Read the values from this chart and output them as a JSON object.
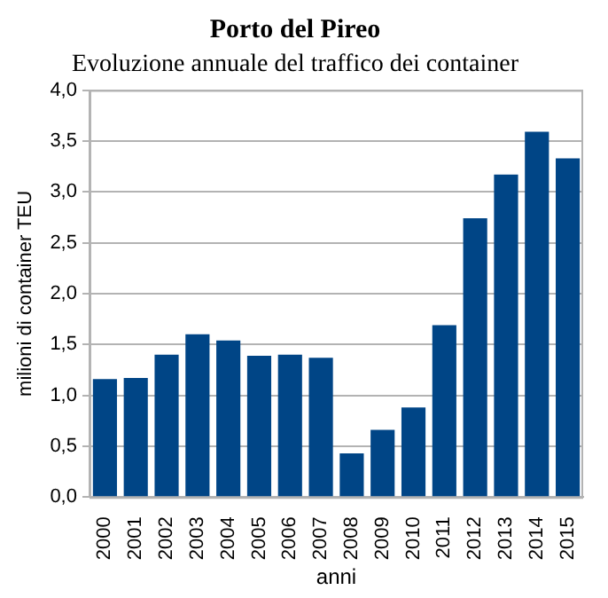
{
  "chart_data": {
    "type": "bar",
    "title": "Porto del Pireo",
    "subtitle": "Evoluzione annuale del traffico dei container",
    "xlabel": "anni",
    "ylabel": "milioni di container TEU",
    "categories": [
      "2000",
      "2001",
      "2002",
      "2003",
      "2004",
      "2005",
      "2006",
      "2007",
      "2008",
      "2009",
      "2010",
      "2011",
      "2012",
      "2013",
      "2014",
      "2015"
    ],
    "values": [
      1.16,
      1.17,
      1.4,
      1.6,
      1.54,
      1.39,
      1.4,
      1.37,
      0.43,
      0.66,
      0.88,
      1.69,
      2.74,
      3.17,
      3.59,
      3.33
    ],
    "color": "#004586",
    "ylim": [
      0,
      4
    ],
    "yticks": [
      {
        "value": 0,
        "label": "0,0"
      },
      {
        "value": 0.5,
        "label": "0,5"
      },
      {
        "value": 1,
        "label": "1,0"
      },
      {
        "value": 1.5,
        "label": "1,5"
      },
      {
        "value": 2,
        "label": "2,0"
      },
      {
        "value": 2.5,
        "label": "2,5"
      },
      {
        "value": 3,
        "label": "3,0"
      },
      {
        "value": 3.5,
        "label": "3,5"
      },
      {
        "value": 4,
        "label": "4,0"
      }
    ],
    "grid": "y",
    "legend": false
  }
}
